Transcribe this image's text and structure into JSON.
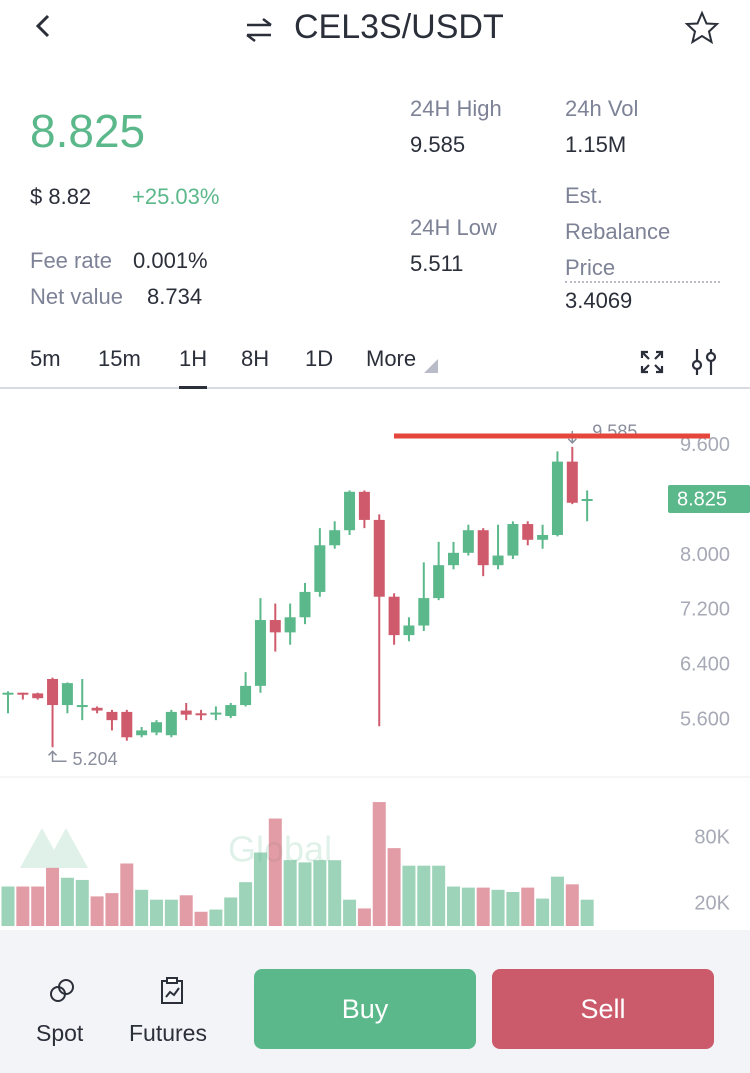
{
  "header": {
    "title": "CEL3S/USDT"
  },
  "ticker": {
    "price": "8.825",
    "usd_price": "$ 8.82",
    "change": "+25.03%",
    "fee_rate_label": "Fee rate",
    "fee_rate": "0.001%",
    "net_value_label": "Net value",
    "net_value": "8.734"
  },
  "stats": [
    {
      "label": "24H High",
      "value": "9.585"
    },
    {
      "label": "24h Vol",
      "value": "1.15M"
    },
    {
      "label": "24H Low",
      "value": "5.511"
    },
    {
      "label": "Est. Rebalance Price",
      "value": "3.4069"
    }
  ],
  "intervals": [
    "5m",
    "15m",
    "1H",
    "8H",
    "1D",
    "More"
  ],
  "chart_data": {
    "type": "candlestick",
    "up_color": "#5bb88a",
    "down_color": "#cf5a6b",
    "open": [
      5.98,
      6.0,
      5.99,
      6.2,
      5.82,
      5.8,
      5.78,
      5.72,
      5.72,
      5.38,
      5.42,
      5.38,
      5.74,
      5.7,
      5.7,
      5.66,
      5.82,
      6.1,
      7.06,
      6.88,
      7.1,
      7.47,
      8.15,
      8.37,
      8.93,
      8.52,
      7.4,
      6.84,
      6.98,
      7.38,
      7.86,
      8.04,
      8.37,
      7.86,
      8.0,
      8.46,
      8.23,
      8.3,
      9.37,
      8.8
    ],
    "high": [
      6.02,
      6.0,
      6.0,
      6.22,
      6.15,
      6.2,
      5.8,
      5.75,
      5.75,
      5.5,
      5.6,
      5.75,
      5.85,
      5.75,
      5.8,
      5.85,
      6.3,
      7.38,
      7.3,
      7.3,
      7.6,
      8.4,
      8.5,
      8.95,
      8.95,
      8.6,
      7.45,
      7.1,
      7.9,
      8.2,
      8.2,
      8.45,
      8.4,
      8.45,
      8.5,
      8.5,
      8.45,
      9.52,
      9.585,
      8.95
    ],
    "low": [
      5.7,
      5.9,
      5.9,
      5.204,
      5.7,
      5.6,
      5.7,
      5.45,
      5.3,
      5.35,
      5.38,
      5.35,
      5.6,
      5.6,
      5.6,
      5.63,
      5.8,
      6.0,
      6.6,
      6.7,
      7.0,
      7.4,
      8.1,
      8.3,
      8.4,
      5.511,
      6.7,
      6.75,
      6.9,
      7.35,
      7.8,
      8.0,
      7.7,
      7.8,
      7.95,
      8.15,
      8.1,
      8.28,
      8.75,
      8.5
    ],
    "close": [
      6.0,
      5.98,
      5.92,
      5.82,
      6.14,
      5.82,
      5.74,
      5.6,
      5.35,
      5.45,
      5.57,
      5.72,
      5.68,
      5.68,
      5.71,
      5.82,
      6.1,
      7.06,
      6.88,
      7.1,
      7.47,
      8.15,
      8.37,
      8.93,
      8.52,
      7.4,
      6.84,
      6.98,
      7.38,
      7.86,
      8.04,
      8.37,
      7.86,
      8.0,
      8.46,
      8.23,
      8.3,
      9.37,
      8.77,
      8.825
    ],
    "ylim": [
      4.8,
      10.4
    ],
    "yticks": [
      {
        "value": 9.6,
        "label": "9.600"
      },
      {
        "value": 8.0,
        "label": "8.000"
      },
      {
        "value": 7.2,
        "label": "7.200"
      },
      {
        "value": 6.4,
        "label": "6.400"
      },
      {
        "value": 5.6,
        "label": "5.600"
      }
    ],
    "last_price": {
      "value": 8.825,
      "label": "8.825"
    },
    "annotations": [
      {
        "value": 9.585,
        "label": "9.585"
      },
      {
        "value": 5.204,
        "label": "5.204"
      }
    ],
    "watermark": "Global",
    "volume": {
      "values": [
        36000,
        36000,
        36000,
        53000,
        44000,
        42000,
        27000,
        30000,
        57000,
        33000,
        24000,
        24000,
        28000,
        13000,
        15000,
        26000,
        40000,
        67000,
        98000,
        60000,
        58000,
        60000,
        60000,
        24000,
        16000,
        113000,
        71000,
        55000,
        55000,
        55000,
        36000,
        35000,
        35000,
        33000,
        31000,
        35000,
        25000,
        45000,
        38000,
        24000
      ],
      "ylim": [
        0,
        124000
      ],
      "yticks": [
        {
          "value": 80000,
          "label": "80K"
        },
        {
          "value": 20000,
          "label": "20K"
        }
      ]
    }
  },
  "footer": {
    "spot": "Spot",
    "futures": "Futures",
    "buy": "Buy",
    "sell": "Sell"
  }
}
